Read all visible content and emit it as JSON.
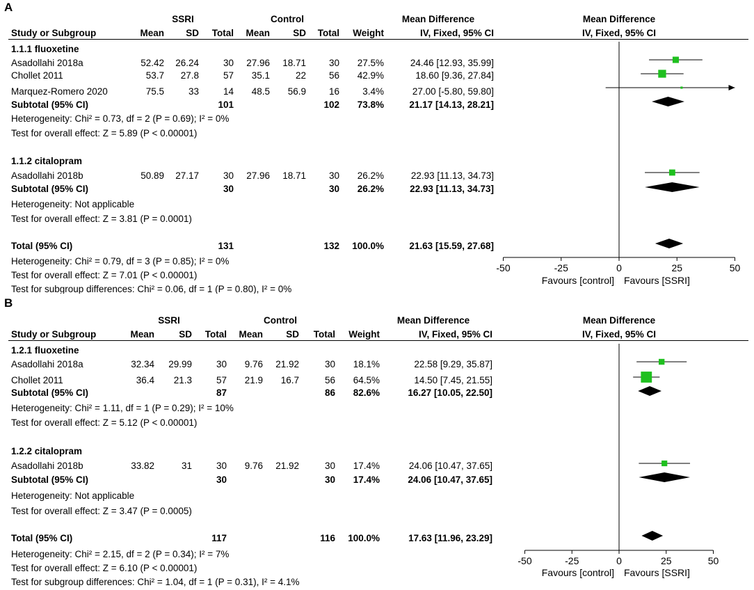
{
  "chart_data": [
    {
      "type": "forest",
      "panel": "A",
      "headers": {
        "group_ssri": "SSRI",
        "group_control": "Control",
        "md_title": "Mean Difference",
        "plot_title": "Mean Difference",
        "col_study": "Study or Subgroup",
        "col_mean": "Mean",
        "col_sd": "SD",
        "col_total": "Total",
        "col_mean2": "Mean",
        "col_sd2": "SD",
        "col_total2": "Total",
        "col_weight": "Weight",
        "col_md": "IV, Fixed, 95% CI",
        "plot_method": "IV, Fixed, 95% CI"
      },
      "xlim": [
        -50,
        50
      ],
      "ticks": [
        "-50",
        "-25",
        "0",
        "25",
        "50"
      ],
      "favours_left": "Favours [control]",
      "favours_right": "Favours [SSRI]",
      "subgroups": [
        {
          "name": "1.1.1 fluoxetine",
          "studies": [
            {
              "study": "Asadollahi 2018a",
              "mean1": "52.42",
              "sd1": "26.24",
              "n1": "30",
              "mean2": "27.96",
              "sd2": "18.71",
              "n2": "30",
              "weight": "27.5%",
              "ci_text": "24.46 [12.93, 35.99]",
              "md": 24.46,
              "lo": 12.93,
              "hi": 35.99,
              "w": 27.5
            },
            {
              "study": "Chollet 2011",
              "mean1": "53.7",
              "sd1": "27.8",
              "n1": "57",
              "mean2": "35.1",
              "sd2": "22",
              "n2": "56",
              "weight": "42.9%",
              "ci_text": "18.60 [9.36, 27.84]",
              "md": 18.6,
              "lo": 9.36,
              "hi": 27.84,
              "w": 42.9
            },
            {
              "study": "Marquez-Romero 2020",
              "mean1": "75.5",
              "sd1": "33",
              "n1": "14",
              "mean2": "48.5",
              "sd2": "56.9",
              "n2": "16",
              "weight": "3.4%",
              "ci_text": "27.00 [-5.80, 59.80]",
              "md": 27.0,
              "lo": -5.8,
              "hi": 59.8,
              "w": 3.4
            }
          ],
          "subtotal": {
            "label": "Subtotal (95% CI)",
            "n1": "101",
            "n2": "102",
            "weight": "73.8%",
            "ci_text": "21.17 [14.13, 28.21]",
            "md": 21.17,
            "lo": 14.13,
            "hi": 28.21
          },
          "heterogeneity": "Heterogeneity: Chi² = 0.73, df = 2 (P = 0.69); I² = 0%",
          "overall": "Test for overall effect: Z = 5.89 (P < 0.00001)"
        },
        {
          "name": "1.1.2 citalopram",
          "studies": [
            {
              "study": "Asadollahi 2018b",
              "mean1": "50.89",
              "sd1": "27.17",
              "n1": "30",
              "mean2": "27.96",
              "sd2": "18.71",
              "n2": "30",
              "weight": "26.2%",
              "ci_text": "22.93 [11.13, 34.73]",
              "md": 22.93,
              "lo": 11.13,
              "hi": 34.73,
              "w": 26.2
            }
          ],
          "subtotal": {
            "label": "Subtotal (95% CI)",
            "n1": "30",
            "n2": "30",
            "weight": "26.2%",
            "ci_text": "22.93 [11.13, 34.73]",
            "md": 22.93,
            "lo": 11.13,
            "hi": 34.73
          },
          "heterogeneity": "Heterogeneity: Not applicable",
          "overall": "Test for overall effect: Z = 3.81 (P = 0.0001)"
        }
      ],
      "total": {
        "label": "Total (95% CI)",
        "n1": "131",
        "n2": "132",
        "weight": "100.0%",
        "ci_text": "21.63 [15.59, 27.68]",
        "md": 21.63,
        "lo": 15.59,
        "hi": 27.68
      },
      "total_heterogeneity": "Heterogeneity: Chi² = 0.79, df = 3 (P = 0.85); I² = 0%",
      "total_overall": "Test for overall effect: Z = 7.01 (P < 0.00001)",
      "subgroup_diff": "Test for subgroup differences: Chi² = 0.06, df = 1 (P = 0.80), I² = 0%"
    },
    {
      "type": "forest",
      "panel": "B",
      "headers": {
        "group_ssri": "SSRI",
        "group_control": "Control",
        "md_title": "Mean Difference",
        "plot_title": "Mean Difference",
        "col_study": "Study or Subgroup",
        "col_mean": "Mean",
        "col_sd": "SD",
        "col_total": "Total",
        "col_mean2": "Mean",
        "col_sd2": "SD",
        "col_total2": "Total",
        "col_weight": "Weight",
        "col_md": "IV, Fixed, 95% CI",
        "plot_method": "IV, Fixed, 95% CI"
      },
      "xlim": [
        -50,
        50
      ],
      "ticks": [
        "-50",
        "-25",
        "0",
        "25",
        "50"
      ],
      "favours_left": "Favours [control]",
      "favours_right": "Favours [SSRI]",
      "subgroups": [
        {
          "name": "1.2.1 fluoxetine",
          "studies": [
            {
              "study": "Asadollahi 2018a",
              "mean1": "32.34",
              "sd1": "29.99",
              "n1": "30",
              "mean2": "9.76",
              "sd2": "21.92",
              "n2": "30",
              "weight": "18.1%",
              "ci_text": "22.58 [9.29, 35.87]",
              "md": 22.58,
              "lo": 9.29,
              "hi": 35.87,
              "w": 18.1
            },
            {
              "study": "Chollet 2011",
              "mean1": "36.4",
              "sd1": "21.3",
              "n1": "57",
              "mean2": "21.9",
              "sd2": "16.7",
              "n2": "56",
              "weight": "64.5%",
              "ci_text": "14.50 [7.45, 21.55]",
              "md": 14.5,
              "lo": 7.45,
              "hi": 21.55,
              "w": 64.5
            }
          ],
          "subtotal": {
            "label": "Subtotal (95% CI)",
            "n1": "87",
            "n2": "86",
            "weight": "82.6%",
            "ci_text": "16.27 [10.05, 22.50]",
            "md": 16.27,
            "lo": 10.05,
            "hi": 22.5
          },
          "heterogeneity": "Heterogeneity: Chi² = 1.11, df = 1 (P = 0.29); I² = 10%",
          "overall": "Test for overall effect: Z = 5.12 (P < 0.00001)"
        },
        {
          "name": "1.2.2 citalopram",
          "studies": [
            {
              "study": "Asadollahi 2018b",
              "mean1": "33.82",
              "sd1": "31",
              "n1": "30",
              "mean2": "9.76",
              "sd2": "21.92",
              "n2": "30",
              "weight": "17.4%",
              "ci_text": "24.06 [10.47, 37.65]",
              "md": 24.06,
              "lo": 10.47,
              "hi": 37.65,
              "w": 17.4
            }
          ],
          "subtotal": {
            "label": "Subtotal (95% CI)",
            "n1": "30",
            "n2": "30",
            "weight": "17.4%",
            "ci_text": "24.06 [10.47, 37.65]",
            "md": 24.06,
            "lo": 10.47,
            "hi": 37.65
          },
          "heterogeneity": "Heterogeneity: Not applicable",
          "overall": "Test for overall effect: Z = 3.47 (P = 0.0005)"
        }
      ],
      "total": {
        "label": "Total (95% CI)",
        "n1": "117",
        "n2": "116",
        "weight": "100.0%",
        "ci_text": "17.63 [11.96, 23.29]",
        "md": 17.63,
        "lo": 11.96,
        "hi": 23.29
      },
      "total_heterogeneity": "Heterogeneity: Chi² = 2.15, df = 2 (P = 0.34); I² = 7%",
      "total_overall": "Test for overall effect: Z = 6.10 (P < 0.00001)",
      "subgroup_diff": "Test for subgroup differences: Chi² = 1.04, df = 1 (P = 0.31), I² = 4.1%"
    }
  ],
  "colors": {
    "square": "#1fc01f",
    "diamond": "#000000"
  }
}
